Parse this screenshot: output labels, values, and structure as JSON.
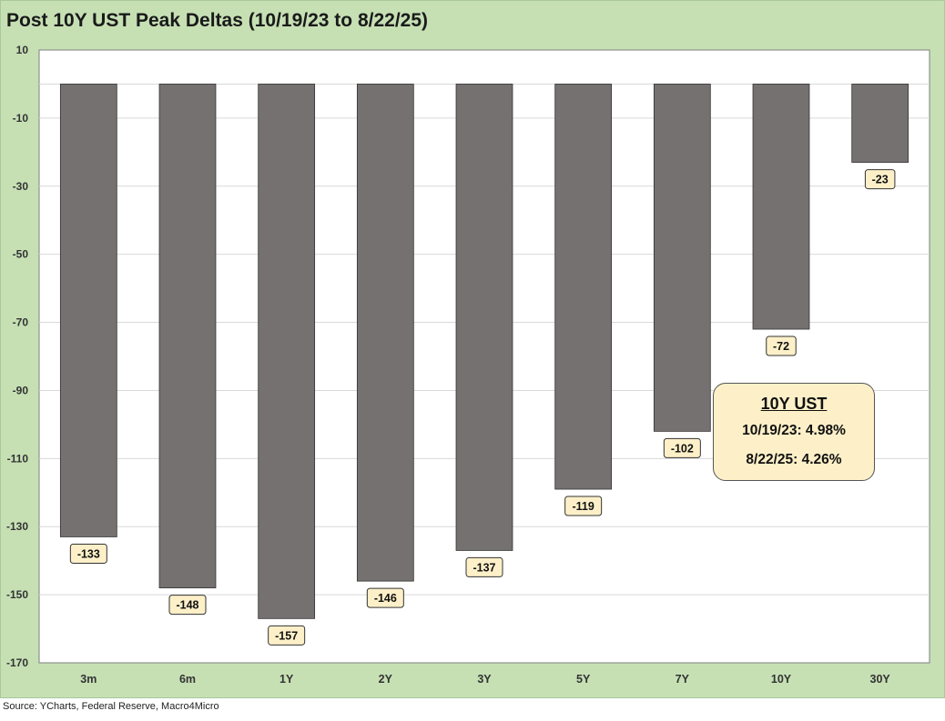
{
  "title": "Post 10Y UST Peak Deltas (10/19/23 to 8/22/25)",
  "source": "Source: YCharts, Federal Reserve, Macro4Micro",
  "callout": {
    "title": "10Y UST",
    "line1": "10/19/23:  4.98%",
    "line2": "8/22/25:   4.26%"
  },
  "chart_data": {
    "type": "bar",
    "title": "Post 10Y UST Peak Deltas (10/19/23 to 8/22/25)",
    "categories": [
      "3m",
      "6m",
      "1Y",
      "2Y",
      "3Y",
      "5Y",
      "7Y",
      "10Y",
      "30Y"
    ],
    "values": [
      -133,
      -148,
      -157,
      -146,
      -137,
      -119,
      -102,
      -72,
      -23
    ],
    "data_labels": [
      "-133",
      "-148",
      "-157",
      "-146",
      "-137",
      "-119",
      "-102",
      "-72",
      "-23"
    ],
    "ylim": [
      -170,
      10
    ],
    "yticks": [
      10,
      -10,
      -30,
      -50,
      -70,
      -90,
      -110,
      -130,
      -150,
      -170
    ],
    "ytick_labels": [
      "10",
      "-10",
      "-30",
      "-50",
      "-70",
      "-90",
      "-110",
      "-130",
      "-150",
      "-170"
    ],
    "grid": true,
    "legend": "none",
    "bar_color": "#767171",
    "label_fill": "#fdf0c8"
  }
}
